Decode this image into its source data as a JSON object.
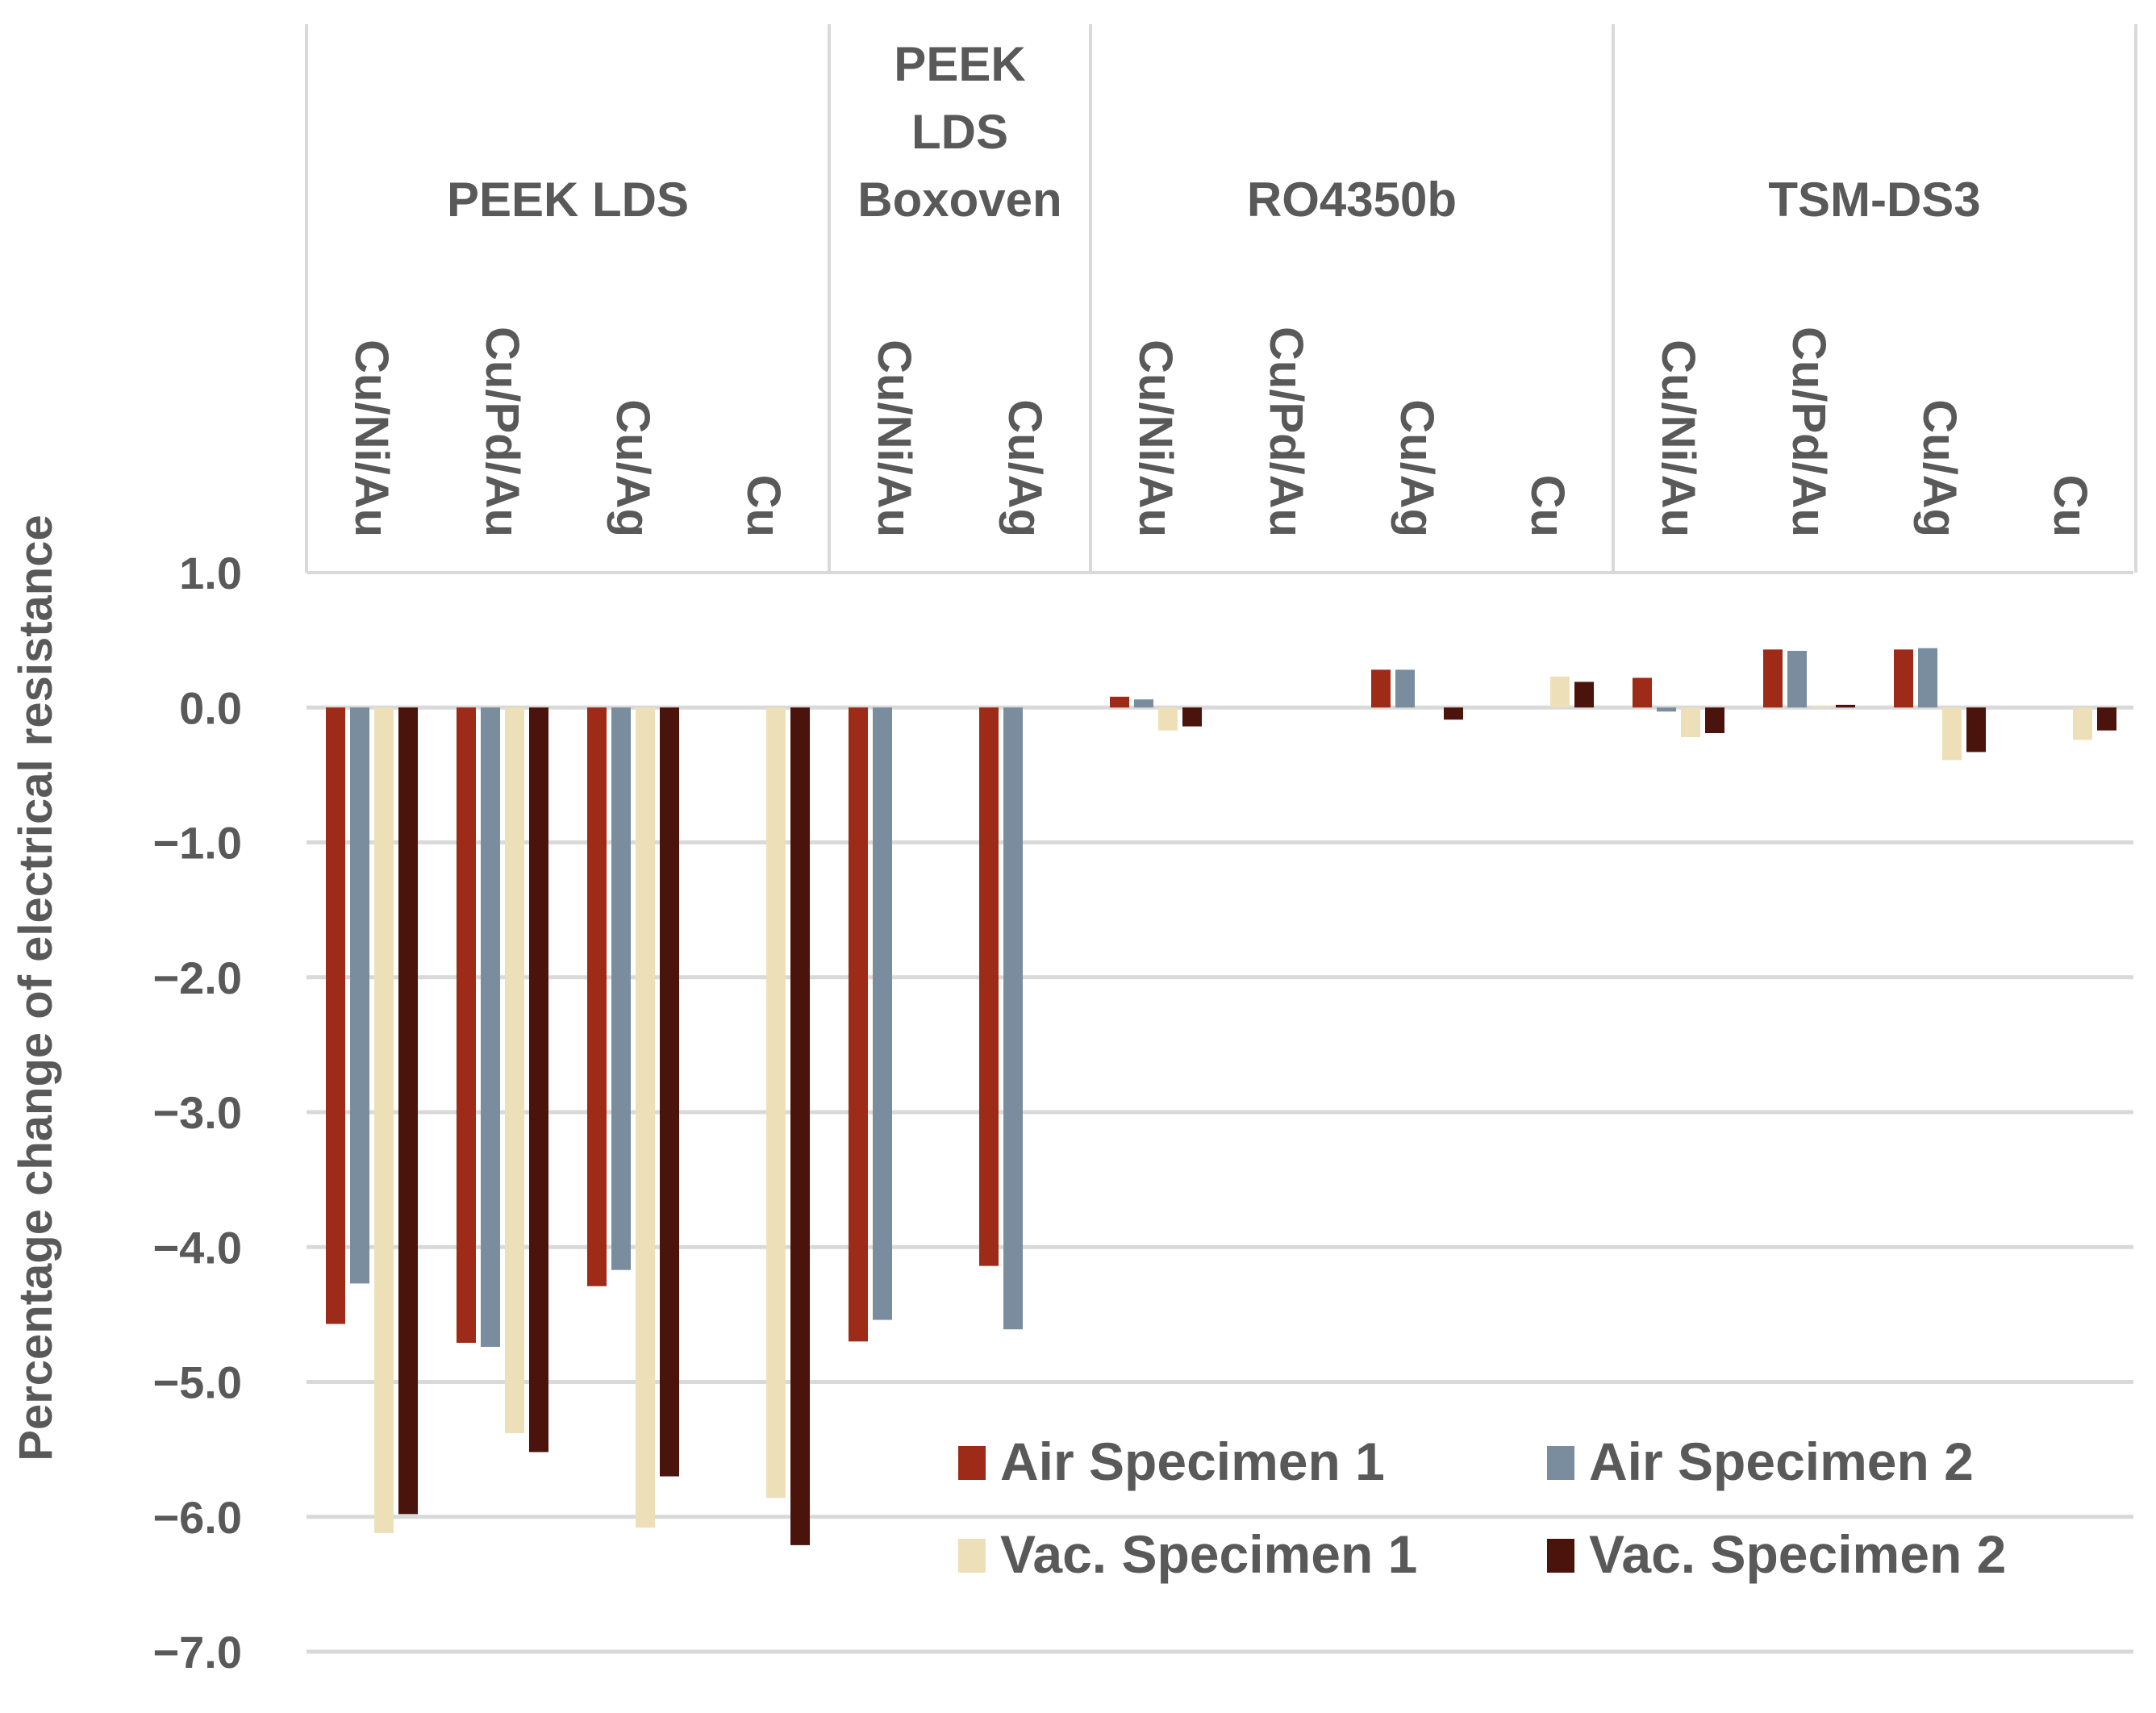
{
  "chart_data": {
    "type": "bar",
    "title": "",
    "xlabel": "",
    "ylabel": "Percentage change of electrical resistance",
    "ylim": [
      -7.0,
      1.0
    ],
    "yticks": [
      1.0,
      0.0,
      -1.0,
      -2.0,
      -3.0,
      -4.0,
      -5.0,
      -6.0,
      -7.0
    ],
    "ytick_labels": [
      "1.0",
      "0.0",
      "−1.0",
      "−2.0",
      "−3.0",
      "−4.0",
      "−5.0",
      "−6.0",
      "−7.0"
    ],
    "grid": true,
    "legend_position": "bottom-right",
    "groups": [
      {
        "label": "PEEK LDS",
        "categories": [
          "Cu/Ni/Au",
          "Cu/Pd/Au",
          "Cu/Ag",
          "Cu"
        ]
      },
      {
        "label": "PEEK LDS Boxoven",
        "label_lines": [
          "PEEK",
          "LDS",
          "Boxoven"
        ],
        "categories": [
          "Cu/Ni/Au",
          "Cu/Ag"
        ]
      },
      {
        "label": "RO4350b",
        "categories": [
          "Cu/Ni/Au",
          "Cu/Pd/Au",
          "Cu/Ag",
          "Cu"
        ]
      },
      {
        "label": "TSM-DS3",
        "categories": [
          "Cu/Ni/Au",
          "Cu/Pd/Au",
          "Cu/Ag",
          "Cu"
        ]
      }
    ],
    "categories": [
      "Cu/Ni/Au",
      "Cu/Pd/Au",
      "Cu/Ag",
      "Cu",
      "Cu/Ni/Au",
      "Cu/Ag",
      "Cu/Ni/Au",
      "Cu/Pd/Au",
      "Cu/Ag",
      "Cu",
      "Cu/Ni/Au",
      "Cu/Pd/Au",
      "Cu/Ag",
      "Cu"
    ],
    "series": [
      {
        "name": "Air Specimen 1",
        "color": "#9e2a18",
        "values": [
          -4.57,
          -4.71,
          -4.29,
          null,
          -4.7,
          -4.14,
          0.08,
          null,
          0.28,
          null,
          0.22,
          0.43,
          0.43,
          null
        ]
      },
      {
        "name": "Air Specimen 2",
        "color": "#7a8d9e",
        "values": [
          -4.27,
          -4.74,
          -4.17,
          null,
          -4.54,
          -4.61,
          0.06,
          null,
          0.28,
          null,
          -0.03,
          0.42,
          0.44,
          null
        ]
      },
      {
        "name": "Vac. Specimen 1",
        "color": "#ede0b8",
        "values": [
          -6.12,
          -5.38,
          -6.08,
          -5.86,
          null,
          null,
          -0.17,
          null,
          null,
          0.23,
          -0.22,
          0.01,
          -0.39,
          -0.24
        ]
      },
      {
        "name": "Vac. Specimen 2",
        "color": "#4a130c",
        "values": [
          -5.98,
          -5.52,
          -5.7,
          -6.21,
          null,
          null,
          -0.14,
          null,
          -0.09,
          0.19,
          -0.19,
          0.02,
          -0.33,
          -0.17
        ]
      }
    ]
  }
}
